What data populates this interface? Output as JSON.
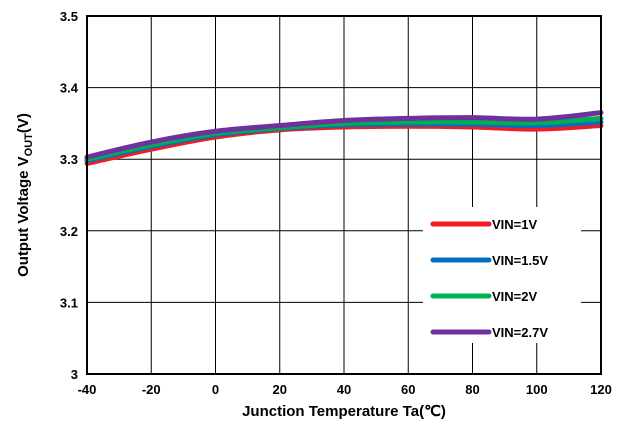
{
  "chart_data": {
    "type": "line",
    "title": "",
    "xlabel": "Junction Temperature Ta(℃)",
    "ylabel": {
      "main": "Output Voltage V",
      "sub": "OUT",
      "suffix": "(V)"
    },
    "xlim": [
      -40,
      120
    ],
    "ylim": [
      3.0,
      3.5
    ],
    "x_ticks": [
      "-40",
      "-20",
      "0",
      "20",
      "40",
      "60",
      "80",
      "100",
      "120"
    ],
    "y_ticks": [
      "3",
      "3.1",
      "3.2",
      "3.3",
      "3.4",
      "3.5"
    ],
    "grid": true,
    "legend_position": "lower-right",
    "x": [
      -40,
      -20,
      0,
      20,
      40,
      60,
      80,
      100,
      120
    ],
    "series": [
      {
        "name": "VIN=1V",
        "color": "#ee1c25",
        "values": [
          3.294,
          3.314,
          3.331,
          3.341,
          3.345,
          3.346,
          3.345,
          3.342,
          3.347
        ]
      },
      {
        "name": "VIN=1.5V",
        "color": "#0070c0",
        "values": [
          3.298,
          3.318,
          3.334,
          3.343,
          3.348,
          3.349,
          3.349,
          3.347,
          3.352
        ]
      },
      {
        "name": "VIN=2V",
        "color": "#00b050",
        "values": [
          3.3,
          3.32,
          3.336,
          3.344,
          3.35,
          3.352,
          3.352,
          3.351,
          3.357
        ]
      },
      {
        "name": "VIN=2.7V",
        "color": "#7030a0",
        "values": [
          3.303,
          3.324,
          3.339,
          3.347,
          3.354,
          3.357,
          3.358,
          3.356,
          3.365
        ]
      }
    ]
  }
}
